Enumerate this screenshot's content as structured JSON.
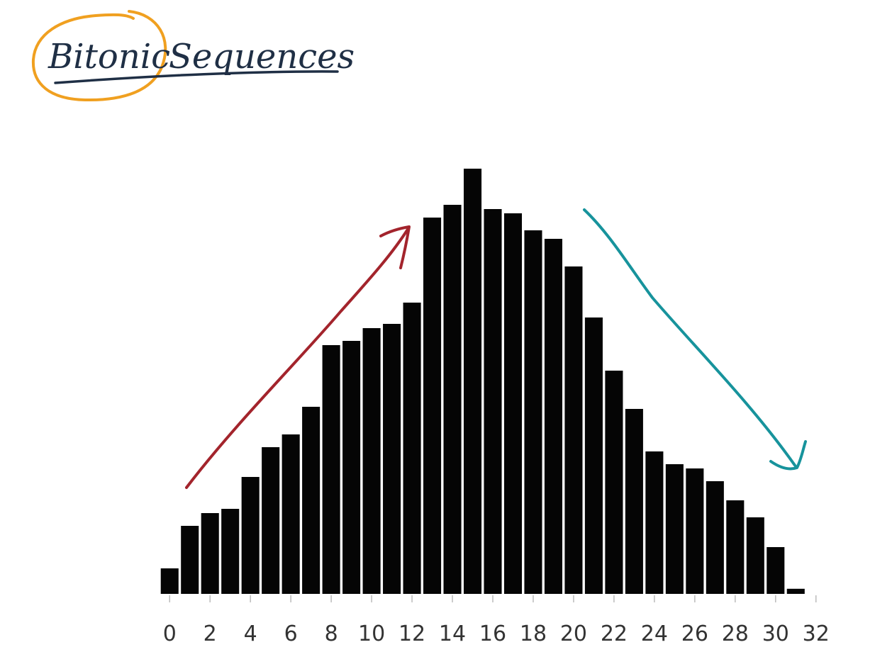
{
  "title": {
    "word1": "Bitonic",
    "word2": "Sequences"
  },
  "annotations": {
    "highlight_color": "#f0a020",
    "title_color": "#1f2f45",
    "increasing_arrow_color": "#a3242c",
    "decreasing_arrow_color": "#17939c"
  },
  "chart_data": {
    "type": "bar",
    "title": "Bitonic Sequences",
    "xlabel": "",
    "ylabel": "",
    "x_ticks": [
      0,
      2,
      4,
      6,
      8,
      10,
      12,
      14,
      16,
      18,
      20,
      22,
      24,
      26,
      28,
      30,
      32
    ],
    "xlim": [
      -0.5,
      32.5
    ],
    "ylim": [
      0,
      100
    ],
    "bar_color": "#050505",
    "grid": false,
    "categories": [
      0,
      1,
      2,
      3,
      4,
      5,
      6,
      7,
      8,
      9,
      10,
      11,
      12,
      13,
      14,
      15,
      16,
      17,
      18,
      19,
      20,
      21,
      22,
      23,
      24,
      25,
      26,
      27,
      28,
      29,
      30,
      31
    ],
    "values": [
      6,
      16,
      19,
      20,
      27.5,
      34.5,
      37.5,
      44,
      58.5,
      59.5,
      62.5,
      63.5,
      68.5,
      88.5,
      91.5,
      100,
      90.5,
      89.5,
      85.5,
      83.5,
      77,
      65,
      52.5,
      43.5,
      33.5,
      30.5,
      29.5,
      26.5,
      22,
      18,
      11,
      1.2
    ]
  }
}
